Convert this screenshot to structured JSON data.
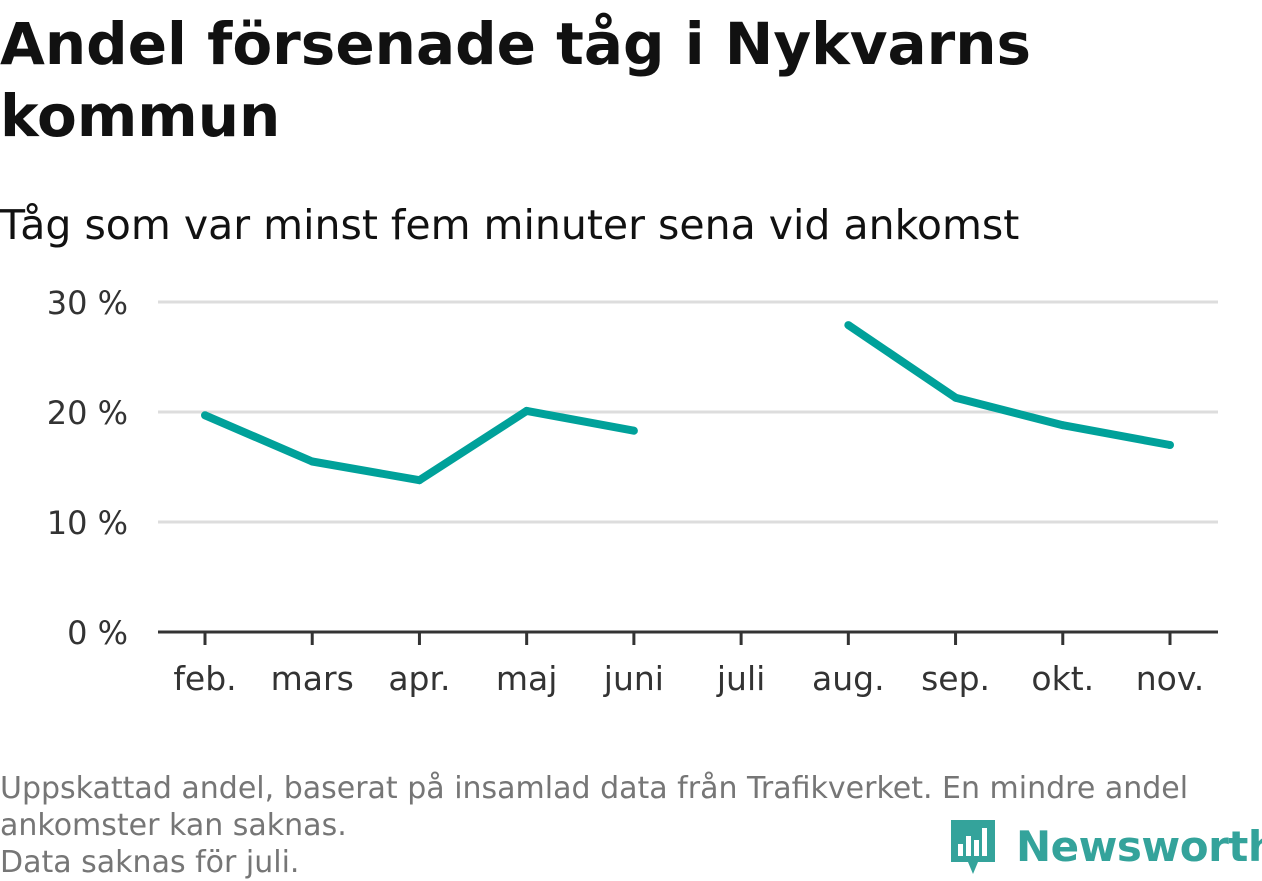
{
  "title": "Andel försenade tåg i Nykvarns kommun",
  "subtitle": "Tåg som var minst fem minuter sena vid ankomst",
  "chart_data": {
    "type": "line",
    "categories": [
      "feb.",
      "mars",
      "apr.",
      "maj",
      "juni",
      "juli",
      "aug.",
      "sep.",
      "okt.",
      "nov."
    ],
    "series": [
      {
        "values": [
          19.7,
          15.5,
          13.8,
          20.1,
          18.3,
          null,
          27.9,
          21.3,
          18.8,
          17.0
        ]
      }
    ],
    "yticks": [
      0,
      10,
      20,
      30
    ],
    "ytick_labels": [
      "0 %",
      "10 %",
      "20 %",
      "30 %"
    ],
    "ylim": [
      0,
      30
    ],
    "grid": true,
    "line_color": "#00a19a"
  },
  "footer": {
    "note_line1": "Uppskattad andel, baserat på insamlad data från Trafikverket. En mindre andel",
    "note_line2": "ankomster kan saknas.",
    "note_line3": "Data saknas för juli."
  },
  "logo": {
    "text": "Newsworthy",
    "icon": "bar-chart-speech-bubble-icon",
    "color": "#34a39b"
  }
}
